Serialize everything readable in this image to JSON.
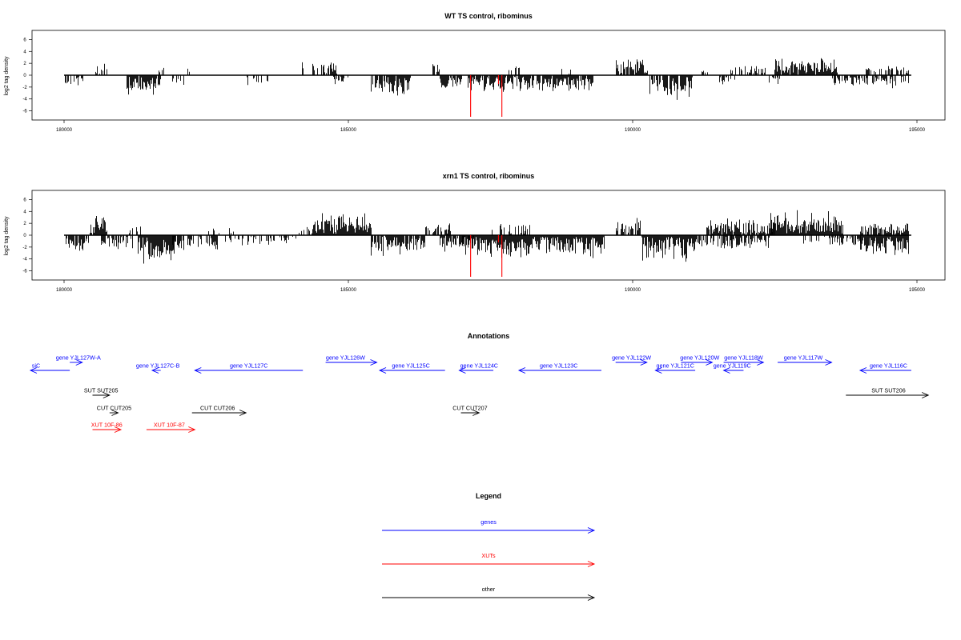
{
  "chart_data": [
    {
      "type": "bar",
      "title": "WT TS control, ribominus",
      "ylabel": "log2 tag density",
      "xlim": [
        180000,
        194900
      ],
      "ylim": [
        -7,
        7
      ],
      "xticks": [
        "180000",
        "185000",
        "190000",
        "195000"
      ],
      "yticks": [
        "6",
        "4",
        "2",
        "0",
        "-2",
        "-4",
        "-6"
      ],
      "seed": 11,
      "segments": [
        {
          "from": 180000,
          "to": 180350,
          "dens": 0.5,
          "sign": -1,
          "amp": 1.8
        },
        {
          "from": 180500,
          "to": 180800,
          "dens": 0.35,
          "sign": 1,
          "amp": 2.0
        },
        {
          "from": 181100,
          "to": 181700,
          "dens": 0.9,
          "sign": -1,
          "amp": 3.5
        },
        {
          "from": 181650,
          "to": 181750,
          "dens": 0.4,
          "sign": 1,
          "amp": 1.2
        },
        {
          "from": 181900,
          "to": 182100,
          "dens": 0.25,
          "sign": -1,
          "amp": 1.6
        },
        {
          "from": 182150,
          "to": 182200,
          "dens": 0.3,
          "sign": 1,
          "amp": 1.2
        },
        {
          "from": 183200,
          "to": 183700,
          "dens": 0.3,
          "sign": -1,
          "amp": 1.5
        },
        {
          "from": 184150,
          "to": 184200,
          "dens": 0.4,
          "sign": 1,
          "amp": 2.5
        },
        {
          "from": 184350,
          "to": 184800,
          "dens": 0.7,
          "sign": 1,
          "amp": 2.6
        },
        {
          "from": 184700,
          "to": 185000,
          "dens": 0.5,
          "sign": -1,
          "amp": 1.4
        },
        {
          "from": 185400,
          "to": 186100,
          "dens": 0.85,
          "sign": -1,
          "amp": 3.8
        },
        {
          "from": 186400,
          "to": 186600,
          "dens": 0.4,
          "sign": 1,
          "amp": 2.2
        },
        {
          "from": 186600,
          "to": 187000,
          "dens": 0.8,
          "sign": -1,
          "amp": 2.8
        },
        {
          "from": 187100,
          "to": 188200,
          "dens": 0.85,
          "sign": -1,
          "amp": 3.2
        },
        {
          "from": 187800,
          "to": 188000,
          "dens": 0.3,
          "sign": 1,
          "amp": 1.8
        },
        {
          "from": 188200,
          "to": 189300,
          "dens": 0.85,
          "sign": -1,
          "amp": 2.8
        },
        {
          "from": 188700,
          "to": 188900,
          "dens": 0.3,
          "sign": 1,
          "amp": 1.3
        },
        {
          "from": 189700,
          "to": 190250,
          "dens": 0.85,
          "sign": 1,
          "amp": 2.8
        },
        {
          "from": 190300,
          "to": 191050,
          "dens": 0.9,
          "sign": -1,
          "amp": 4.0
        },
        {
          "from": 191200,
          "to": 191350,
          "dens": 0.4,
          "sign": 1,
          "amp": 1.5
        },
        {
          "from": 191500,
          "to": 191800,
          "dens": 0.4,
          "sign": -1,
          "amp": 1.5
        },
        {
          "from": 191700,
          "to": 192400,
          "dens": 0.5,
          "sign": 1,
          "amp": 1.8
        },
        {
          "from": 192400,
          "to": 192650,
          "dens": 0.5,
          "sign": -1,
          "amp": 1.5
        },
        {
          "from": 192500,
          "to": 193600,
          "dens": 0.95,
          "sign": 1,
          "amp": 3.2
        },
        {
          "from": 193500,
          "to": 194150,
          "dens": 0.6,
          "sign": -1,
          "amp": 2.0
        },
        {
          "from": 194100,
          "to": 194850,
          "dens": 0.6,
          "sign": 1,
          "amp": 1.6
        },
        {
          "from": 194200,
          "to": 194850,
          "dens": 0.6,
          "sign": -1,
          "amp": 2.2
        }
      ],
      "red_marks": [
        {
          "x": 187150,
          "y": -7.0
        },
        {
          "x": 187700,
          "y": -7.0
        },
        {
          "x": 187640,
          "y": -1.5
        }
      ]
    },
    {
      "type": "bar",
      "title": "xrn1 TS control, ribominus",
      "ylabel": "log2 tag density",
      "xlim": [
        180000,
        194900
      ],
      "ylim": [
        -7,
        7
      ],
      "xticks": [
        "180000",
        "185000",
        "190000",
        "195000"
      ],
      "yticks": [
        "6",
        "4",
        "2",
        "0",
        "-2",
        "-4",
        "-6"
      ],
      "seed": 29,
      "segments": [
        {
          "from": 180000,
          "to": 180450,
          "dens": 0.7,
          "sign": -1,
          "amp": 2.8
        },
        {
          "from": 180450,
          "to": 180750,
          "dens": 0.8,
          "sign": 1,
          "amp": 3.6
        },
        {
          "from": 180650,
          "to": 181200,
          "dens": 0.7,
          "sign": -1,
          "amp": 2.6
        },
        {
          "from": 181100,
          "to": 181350,
          "dens": 0.3,
          "sign": 1,
          "amp": 1.8
        },
        {
          "from": 181300,
          "to": 181950,
          "dens": 1.0,
          "sign": -1,
          "amp": 4.8
        },
        {
          "from": 181900,
          "to": 182700,
          "dens": 0.6,
          "sign": -1,
          "amp": 2.5
        },
        {
          "from": 182500,
          "to": 183000,
          "dens": 0.25,
          "sign": 1,
          "amp": 1.3
        },
        {
          "from": 182700,
          "to": 184100,
          "dens": 0.35,
          "sign": -1,
          "amp": 1.6
        },
        {
          "from": 184100,
          "to": 184400,
          "dens": 0.35,
          "sign": 1,
          "amp": 1.6
        },
        {
          "from": 184350,
          "to": 185400,
          "dens": 1.0,
          "sign": 1,
          "amp": 3.6
        },
        {
          "from": 185400,
          "to": 186350,
          "dens": 0.9,
          "sign": -1,
          "amp": 3.6
        },
        {
          "from": 186350,
          "to": 186800,
          "dens": 0.5,
          "sign": 1,
          "amp": 2.0
        },
        {
          "from": 186600,
          "to": 187200,
          "dens": 0.8,
          "sign": -1,
          "amp": 3.0
        },
        {
          "from": 187000,
          "to": 189500,
          "dens": 1.0,
          "sign": -1,
          "amp": 3.8
        },
        {
          "from": 187500,
          "to": 188200,
          "dens": 0.4,
          "sign": 1,
          "amp": 2.2
        },
        {
          "from": 189700,
          "to": 190150,
          "dens": 0.8,
          "sign": 1,
          "amp": 3.2
        },
        {
          "from": 190150,
          "to": 191100,
          "dens": 1.0,
          "sign": -1,
          "amp": 4.3
        },
        {
          "from": 191100,
          "to": 191800,
          "dens": 0.7,
          "sign": -1,
          "amp": 2.4
        },
        {
          "from": 191300,
          "to": 192500,
          "dens": 0.8,
          "sign": 1,
          "amp": 2.8
        },
        {
          "from": 191700,
          "to": 192400,
          "dens": 0.6,
          "sign": -1,
          "amp": 2.2
        },
        {
          "from": 192400,
          "to": 193700,
          "dens": 1.0,
          "sign": 1,
          "amp": 4.2
        },
        {
          "from": 193000,
          "to": 193700,
          "dens": 0.5,
          "sign": -1,
          "amp": 1.8
        },
        {
          "from": 193700,
          "to": 194000,
          "dens": 0.7,
          "sign": -1,
          "amp": 2.0
        },
        {
          "from": 194000,
          "to": 194850,
          "dens": 1.0,
          "sign": -1,
          "amp": 3.6
        },
        {
          "from": 194000,
          "to": 194850,
          "dens": 0.9,
          "sign": 1,
          "amp": 2.0
        }
      ],
      "red_marks": [
        {
          "x": 187150,
          "y": -7.0
        },
        {
          "x": 187700,
          "y": -7.0
        },
        {
          "x": 187640,
          "y": -1.2
        }
      ]
    }
  ],
  "annotations": {
    "title": "Annotations",
    "features": [
      {
        "label": "siC",
        "x1": 179300,
        "x2": 180100,
        "dir": -1,
        "row": 1,
        "type": "gene",
        "lx": 179500
      },
      {
        "label": "gene YJL127W-A",
        "x1": 180100,
        "x2": 180320,
        "dir": 1,
        "row": 0,
        "type": "gene",
        "lx": 180250
      },
      {
        "label": "gene YJL127C-B",
        "x1": 181550,
        "x2": 181700,
        "dir": -1,
        "row": 1,
        "type": "gene",
        "lx": 181650
      },
      {
        "label": "gene YJL127C",
        "x1": 182300,
        "x2": 184200,
        "dir": -1,
        "row": 1,
        "type": "gene",
        "lx": 183250
      },
      {
        "label": "gene YJL126W",
        "x1": 184600,
        "x2": 185500,
        "dir": 1,
        "row": 0,
        "type": "gene",
        "lx": 184950
      },
      {
        "label": "gene YJL125C",
        "x1": 185550,
        "x2": 186700,
        "dir": -1,
        "row": 1,
        "type": "gene",
        "lx": 186100
      },
      {
        "label": "gene YJL124C",
        "x1": 186950,
        "x2": 187550,
        "dir": -1,
        "row": 1,
        "type": "gene",
        "lx": 187300
      },
      {
        "label": "gene YJL123C",
        "x1": 188000,
        "x2": 189450,
        "dir": -1,
        "row": 1,
        "type": "gene",
        "lx": 188700
      },
      {
        "label": "gene YJL122W",
        "x1": 189700,
        "x2": 190250,
        "dir": 1,
        "row": 0,
        "type": "gene",
        "lx": 189980
      },
      {
        "label": "gene YJL121C",
        "x1": 190400,
        "x2": 191100,
        "dir": -1,
        "row": 1,
        "type": "gene",
        "lx": 190750
      },
      {
        "label": "gene YJL120W",
        "x1": 190850,
        "x2": 191400,
        "dir": 1,
        "row": 0,
        "type": "gene",
        "lx": 191180
      },
      {
        "label": "gene YJL119C",
        "x1": 191600,
        "x2": 191950,
        "dir": -1,
        "row": 1,
        "type": "gene",
        "lx": 191750
      },
      {
        "label": "gene YJL118W",
        "x1": 191600,
        "x2": 192300,
        "dir": 1,
        "row": 0,
        "type": "gene",
        "lx": 191950
      },
      {
        "label": "gene YJL117W",
        "x1": 192550,
        "x2": 193500,
        "dir": 1,
        "row": 0,
        "type": "gene",
        "lx": 193000
      },
      {
        "label": "gene YJL116C",
        "x1": 194000,
        "x2": 194900,
        "dir": -1,
        "row": 1,
        "type": "gene",
        "lx": 194500
      },
      {
        "label": "SUT SUT205",
        "x1": 180500,
        "x2": 180800,
        "dir": 1,
        "row": 2,
        "type": "other",
        "lx": 180650
      },
      {
        "label": "SUT SUT206",
        "x1": 193750,
        "x2": 195200,
        "dir": 1,
        "row": 2,
        "type": "other",
        "lx": 194500
      },
      {
        "label": "CUT CUT205",
        "x1": 180800,
        "x2": 180950,
        "dir": 1,
        "row": 3,
        "type": "other",
        "lx": 180880
      },
      {
        "label": "CUT CUT206",
        "x1": 182250,
        "x2": 183200,
        "dir": 1,
        "row": 3,
        "type": "other",
        "lx": 182700
      },
      {
        "label": "CUT CUT207",
        "x1": 186980,
        "x2": 187300,
        "dir": 1,
        "row": 3,
        "type": "other",
        "lx": 187140
      },
      {
        "label": "XUT 10F-86",
        "x1": 180500,
        "x2": 181000,
        "dir": 1,
        "row": 4,
        "type": "xut",
        "lx": 180750
      },
      {
        "label": "XUT 10F-87",
        "x1": 181450,
        "x2": 182300,
        "dir": 1,
        "row": 4,
        "type": "xut",
        "lx": 181850
      }
    ]
  },
  "legend": {
    "title": "Legend",
    "items": [
      {
        "label": "genes",
        "color": "#0000ff"
      },
      {
        "label": "XUTs",
        "color": "#ff0000"
      },
      {
        "label": "other",
        "color": "#000000"
      }
    ]
  },
  "colors": {
    "gene": "#0000ff",
    "xut": "#ff0000",
    "other": "#000000",
    "axis": "#000000",
    "mark": "#ff0000"
  }
}
